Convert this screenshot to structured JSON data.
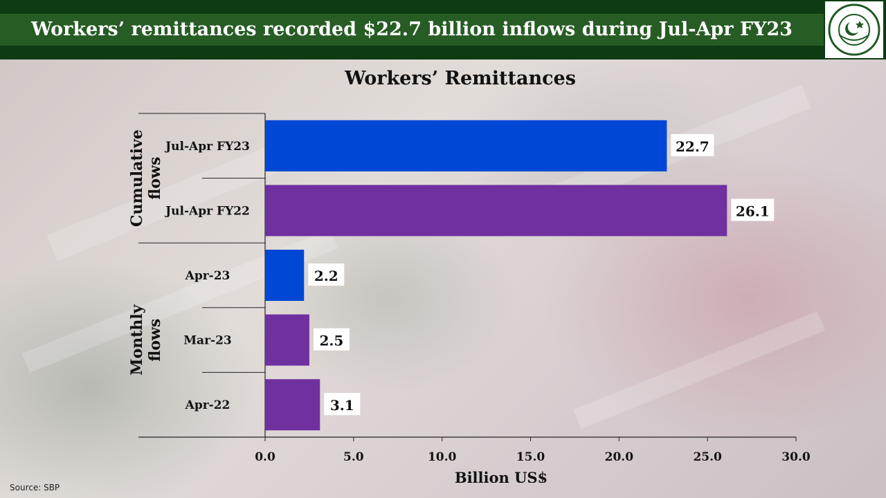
{
  "header": {
    "title": "Workers’ remittances recorded $22.7 billion inflows during Jul-Apr FY23",
    "logo_text": "STATE BANK OF PAKISTAN"
  },
  "source": "Source: SBP",
  "colors": {
    "header_dark": "#0e3b12",
    "header_band": "#275c24",
    "bar_current": "#0047d6",
    "bar_previous": "#7030a0"
  },
  "chart_data": {
    "type": "bar",
    "orientation": "horizontal",
    "title": "Workers’ Remittances",
    "xlabel": "Billion US$",
    "ylabel": "",
    "xlim": [
      0,
      30
    ],
    "xticks": [
      "0.0",
      "5.0",
      "10.0",
      "15.0",
      "20.0",
      "25.0",
      "30.0"
    ],
    "grid": false,
    "groups": [
      {
        "label": "Cumulative flows",
        "lines": [
          "Cumulative",
          "flows"
        ]
      },
      {
        "label": "Monthly flows",
        "lines": [
          "Monthly",
          "flows"
        ]
      }
    ],
    "bars": [
      {
        "group": "Cumulative flows",
        "category": "Jul-Apr FY23",
        "value": 22.7,
        "label": "22.7",
        "color": "#0047d6"
      },
      {
        "group": "Cumulative flows",
        "category": "Jul-Apr FY22",
        "value": 26.1,
        "label": "26.1",
        "color": "#7030a0"
      },
      {
        "group": "Monthly flows",
        "category": "Apr-23",
        "value": 2.2,
        "label": "2.2",
        "color": "#0047d6"
      },
      {
        "group": "Monthly flows",
        "category": "Mar-23",
        "value": 2.5,
        "label": "2.5",
        "color": "#7030a0"
      },
      {
        "group": "Monthly flows",
        "category": "Apr-22",
        "value": 3.1,
        "label": "3.1",
        "color": "#7030a0"
      }
    ]
  }
}
